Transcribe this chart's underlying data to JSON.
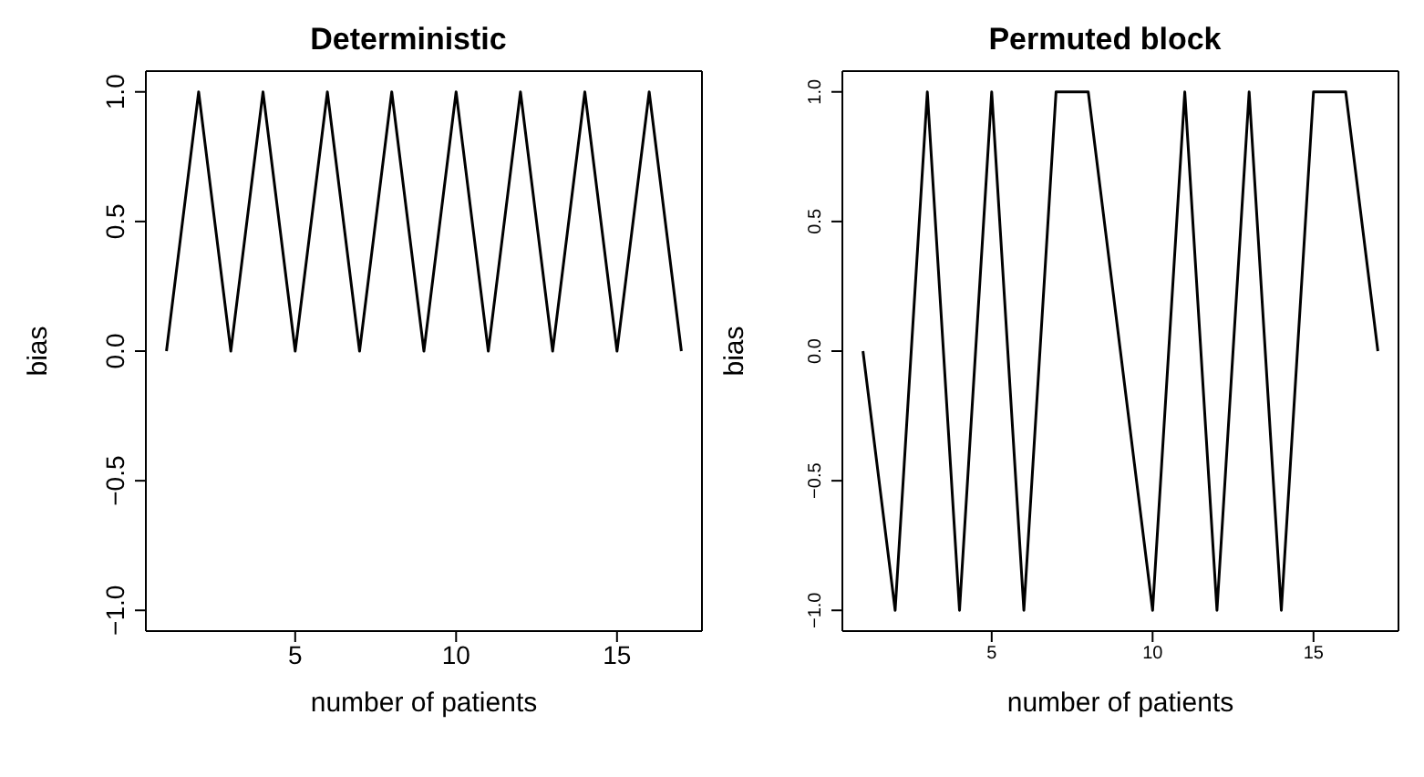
{
  "chart_data": [
    {
      "type": "line",
      "title": "Deterministic",
      "xlabel": "number of patients",
      "ylabel": "bias",
      "x": [
        1,
        2,
        3,
        4,
        5,
        6,
        7,
        8,
        9,
        10,
        11,
        12,
        13,
        14,
        15,
        16,
        17
      ],
      "series": [
        {
          "color": "#000000",
          "values": [
            0,
            1,
            0,
            1,
            0,
            1,
            0,
            1,
            0,
            1,
            0,
            1,
            0,
            1,
            0,
            1,
            0
          ]
        }
      ],
      "xlim": [
        0.36,
        17.64
      ],
      "xticks": [
        5,
        10,
        15
      ],
      "ylim": [
        -1.08,
        1.08
      ],
      "yticks": [
        {
          "value": -1,
          "label": "−1.0"
        },
        {
          "value": -0.5,
          "label": "−0.5"
        },
        {
          "value": 0,
          "label": "0.0"
        },
        {
          "value": 0.5,
          "label": "0.5"
        },
        {
          "value": 1,
          "label": "1.0"
        }
      ],
      "grid": false,
      "legend": false,
      "marker": "none",
      "line_style": "solid"
    },
    {
      "type": "line",
      "title": "Permuted block",
      "xlabel": "number of patients",
      "ylabel": "bias",
      "x": [
        1,
        2,
        3,
        4,
        5,
        6,
        7,
        8,
        9,
        10,
        11,
        12,
        13,
        14,
        15,
        16,
        17
      ],
      "series": [
        {
          "color": "#000000",
          "values": [
            0,
            -1,
            1,
            -1,
            1,
            -1,
            1,
            1,
            0,
            -1,
            1,
            -1,
            1,
            -1,
            1,
            1,
            0
          ]
        }
      ],
      "xlim": [
        0.36,
        17.64
      ],
      "xticks": [
        5,
        10,
        15
      ],
      "ylim": [
        -1.08,
        1.08
      ],
      "yticks": [
        {
          "value": -1,
          "label": "−1.0"
        },
        {
          "value": -0.5,
          "label": "−0.5"
        },
        {
          "value": 0,
          "label": "0.0"
        },
        {
          "value": 0.5,
          "label": "0.5"
        },
        {
          "value": 1,
          "label": "1.0"
        }
      ],
      "grid": false,
      "legend": false,
      "marker": "none",
      "line_style": "solid"
    }
  ]
}
